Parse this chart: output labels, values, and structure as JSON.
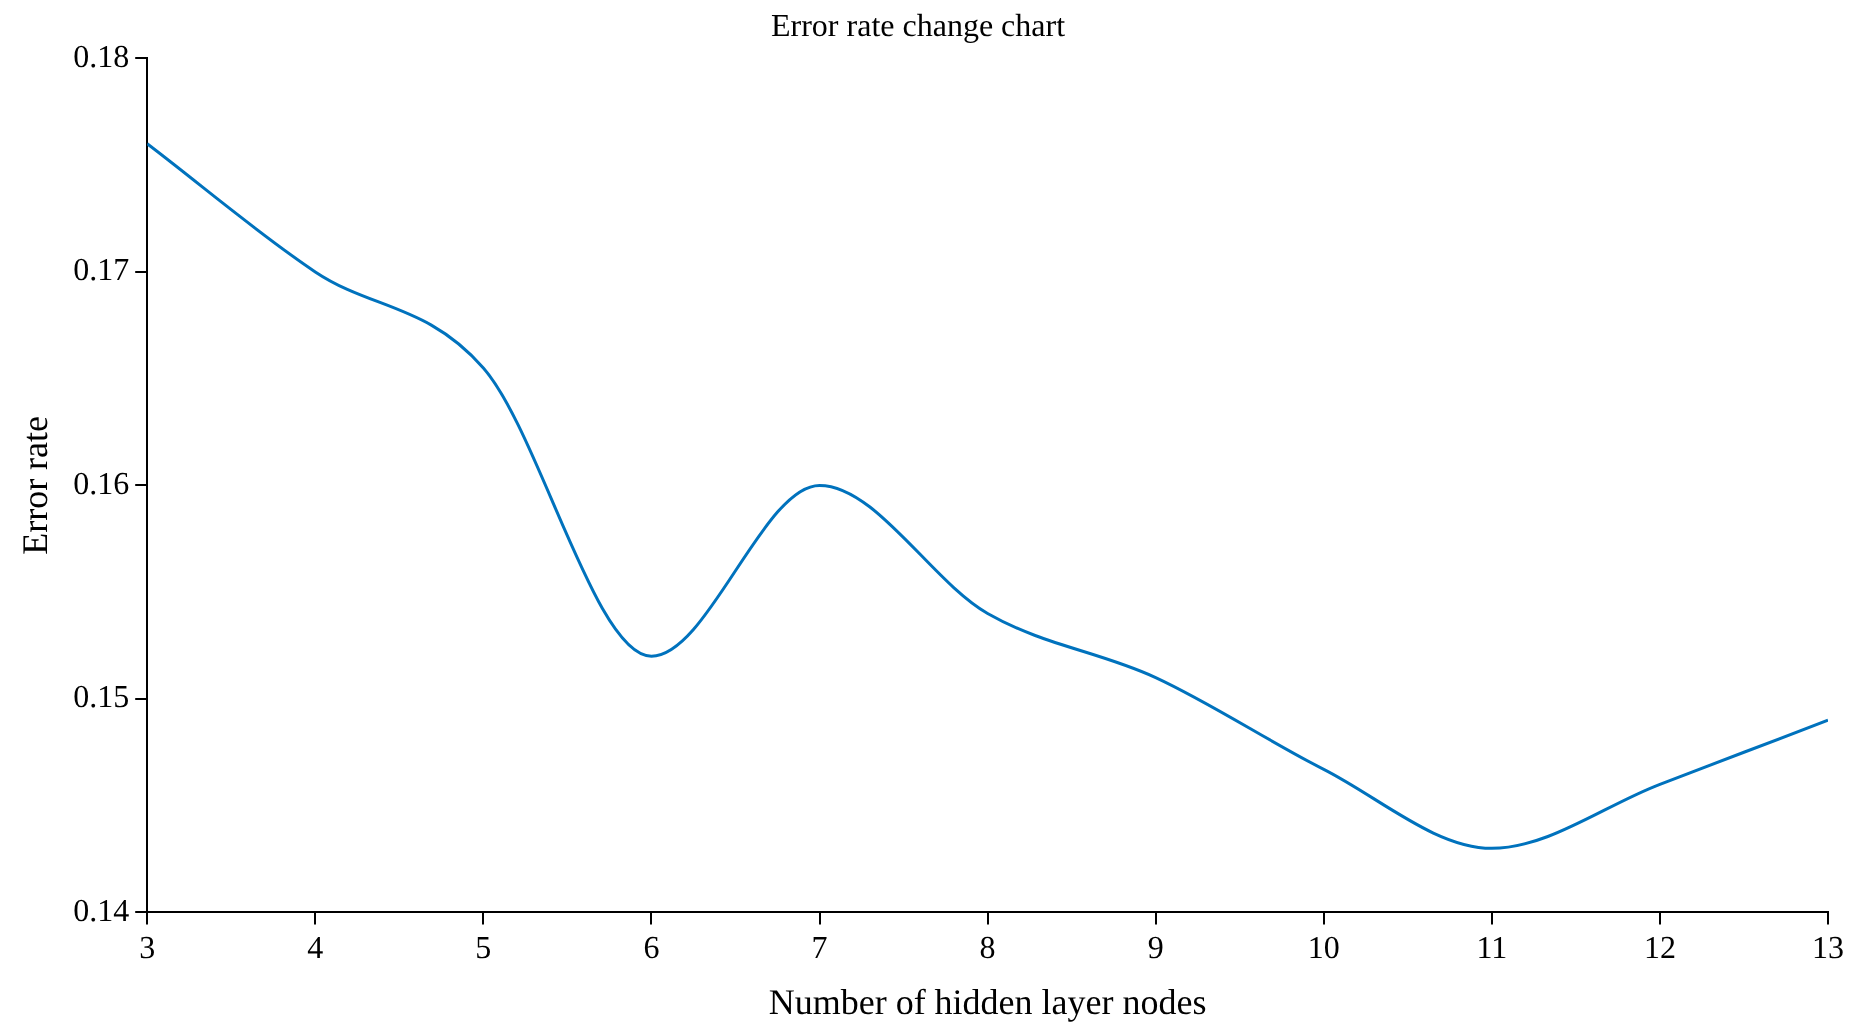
{
  "chart_data": {
    "type": "line",
    "title": "Error rate change chart",
    "xlabel": "Number of hidden layer nodes",
    "ylabel": "Error rate",
    "x": [
      3,
      4,
      5,
      6,
      7,
      8,
      9,
      10,
      11,
      12,
      13
    ],
    "series": [
      {
        "color": "#0072bd",
        "values": [
          0.176,
          0.17,
          0.1655,
          0.152,
          0.16,
          0.154,
          0.151,
          0.1467,
          0.143,
          0.146,
          0.149
        ]
      }
    ],
    "xlim": [
      3,
      13
    ],
    "xticks": [
      3,
      4,
      5,
      6,
      7,
      8,
      9,
      10,
      11,
      12,
      13
    ],
    "ylim": [
      0.14,
      0.18
    ],
    "yticks": [
      0.14,
      0.15,
      0.16,
      0.17,
      0.18
    ],
    "grid": false,
    "legend": false,
    "marker": "none",
    "line_style": "solid"
  }
}
